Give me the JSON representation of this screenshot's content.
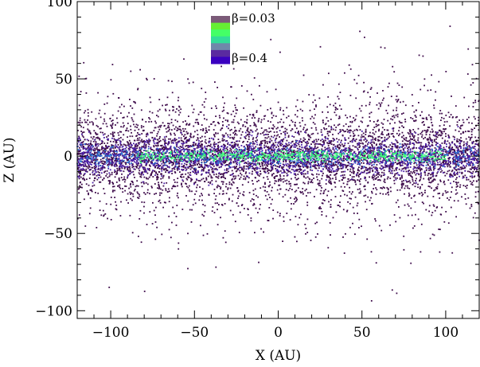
{
  "chart_data": {
    "type": "scatter",
    "title": "",
    "xlabel": "X (AU)",
    "ylabel": "Z (AU)",
    "xlim": [
      -120,
      120
    ],
    "ylim": [
      -105,
      100
    ],
    "x_ticks": [
      -100,
      -50,
      0,
      50,
      100
    ],
    "y_ticks": [
      -100,
      -50,
      0,
      50,
      100
    ],
    "x_tick_labels": [
      "−100",
      "−50",
      "0",
      "50",
      "100"
    ],
    "y_tick_labels": [
      "−100",
      "−50",
      "0",
      "50",
      "100"
    ],
    "grid": false,
    "legend_position": "top-center",
    "colorbar": {
      "label_top": "β=0.03",
      "label_bottom": "β=0.4",
      "colors": [
        "#7b5a78",
        "#66ee33",
        "#44ff66",
        "#33dd99",
        "#6f88aa",
        "#5a2aa0",
        "#3a00c0"
      ]
    },
    "series": [
      {
        "color": "#3d0a4a",
        "spread_au": 22,
        "x_range": [
          -120,
          120
        ]
      },
      {
        "color": "#4b1fa8",
        "spread_au": 6,
        "x_range": [
          -120,
          120
        ]
      },
      {
        "color": "#2a6fd0",
        "spread_au": 3,
        "x_range": [
          -120,
          120
        ]
      },
      {
        "color": "#3dff7a",
        "spread_au": 1.6,
        "x_range": [
          -85,
          100
        ]
      }
    ]
  }
}
